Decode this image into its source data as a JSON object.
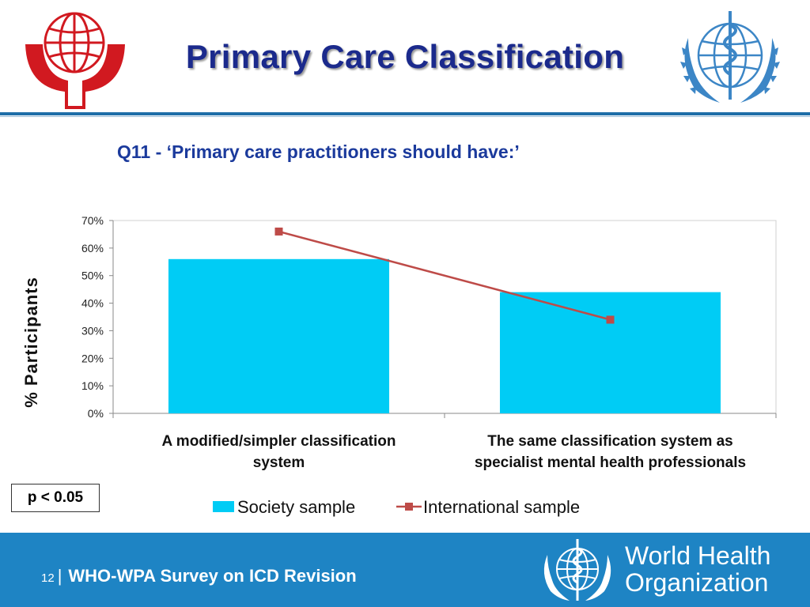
{
  "slide": {
    "title": "Primary Care Classification",
    "question": "Q11 - ‘Primary care practitioners should have:’",
    "y_axis_title": "%  Participants",
    "significance": "p < 0.05"
  },
  "footer": {
    "page_number": "12",
    "separator": "|",
    "survey_title": "WHO-WPA Survey on ICD Revision",
    "org_name_line1": "World Health",
    "org_name_line2": "Organization"
  },
  "colors": {
    "title": "#1b2a8c",
    "question": "#1b3a9c",
    "bar": "#00ccf5",
    "line": "#be4b48",
    "footer_bg": "#1e84c4",
    "wpa_red": "#d11920",
    "who_blue": "#3c86c6"
  },
  "icons": {
    "left_logo": "wpa-globe-logo-icon",
    "right_logo": "who-emblem-icon",
    "footer_logo": "who-emblem-icon"
  },
  "chart_data": {
    "type": "bar",
    "categories": [
      "A modified/simpler classification system",
      "The same classification system as specialist mental health professionals"
    ],
    "category_lines": [
      [
        "A modified/simpler classification",
        "system"
      ],
      [
        "The same classification system as",
        "specialist mental health professionals"
      ]
    ],
    "series": [
      {
        "name": "Society sample",
        "type": "bar",
        "values": [
          56,
          44
        ]
      },
      {
        "name": "International sample",
        "type": "line",
        "values": [
          66,
          34
        ]
      }
    ],
    "ylim": [
      0,
      70
    ],
    "yticks": [
      "0%",
      "10%",
      "20%",
      "30%",
      "40%",
      "50%",
      "60%",
      "70%"
    ],
    "ylabel": "%  Participants",
    "grid": false,
    "legend": "bottom"
  }
}
